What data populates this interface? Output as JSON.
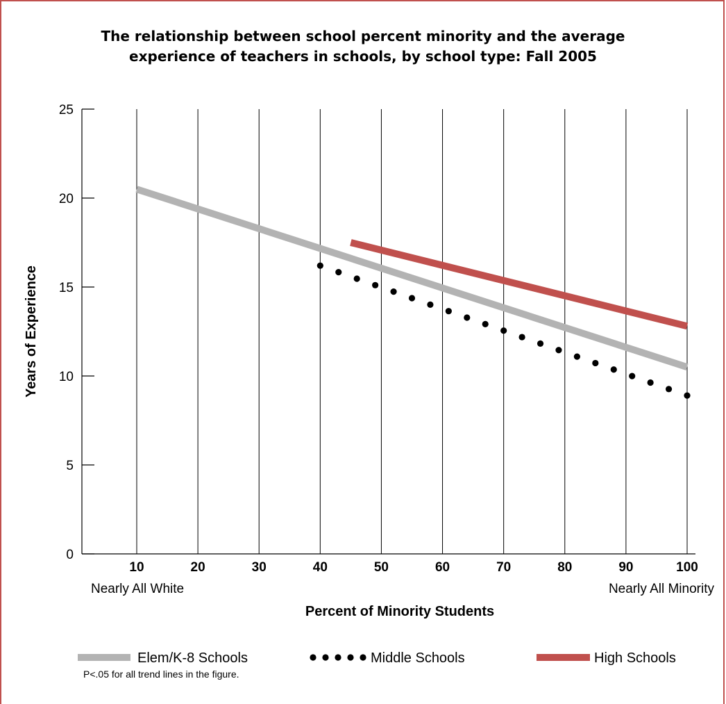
{
  "chart_data": {
    "type": "line",
    "title_lines": [
      "The relationship between school percent minority and the average",
      "experience of teachers in schools, by school type: Fall 2005"
    ],
    "xlabel": "Percent of Minority Students",
    "ylabel": "Years of Experience",
    "x_ticks": [
      10,
      20,
      30,
      40,
      50,
      60,
      70,
      80,
      90,
      100
    ],
    "y_ticks": [
      0,
      5,
      10,
      15,
      20,
      25
    ],
    "xlim": [
      3,
      100
    ],
    "ylim": [
      0,
      25
    ],
    "x_end_labels": {
      "left": "Nearly All White",
      "right": "Nearly All Minority"
    },
    "grid": "vertical",
    "legend_position": "bottom",
    "series": [
      {
        "name": "Elem/K-8 Schools",
        "style": "solid-thick",
        "color": "#b3b3b3",
        "x": [
          10,
          100
        ],
        "y": [
          20.5,
          10.5
        ]
      },
      {
        "name": "Middle Schools",
        "style": "dotted",
        "color": "#000000",
        "x": [
          40,
          100
        ],
        "y": [
          16.2,
          8.9
        ]
      },
      {
        "name": "High Schools",
        "style": "solid-thick",
        "color": "#c0504d",
        "x": [
          45,
          100
        ],
        "y": [
          17.5,
          12.8
        ]
      }
    ],
    "footnote": "P<.05 for all trend lines in the figure."
  }
}
